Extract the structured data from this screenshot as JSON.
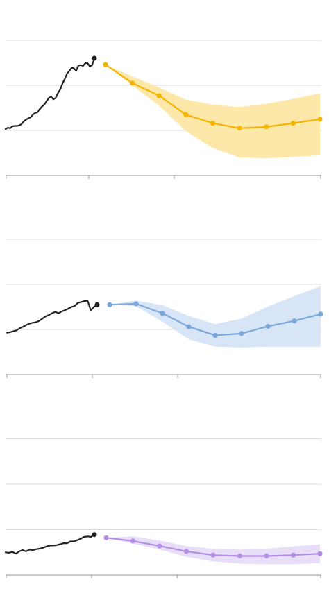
{
  "chart_data": [
    {
      "type": "line",
      "title": "",
      "xlabel": "",
      "ylabel": "",
      "ylim": [
        0,
        3
      ],
      "grid": true,
      "history": {
        "color": "#222222",
        "values": [
          1.03,
          1.06,
          1.05,
          1.09,
          1.1,
          1.1,
          1.11,
          1.14,
          1.2,
          1.24,
          1.27,
          1.29,
          1.35,
          1.39,
          1.4,
          1.47,
          1.53,
          1.57,
          1.65,
          1.72,
          1.75,
          1.69,
          1.72,
          1.83,
          1.91,
          2.04,
          2.14,
          2.26,
          2.32,
          2.39,
          2.38,
          2.32,
          2.44,
          2.45,
          2.43,
          2.49,
          2.49,
          2.42,
          2.45,
          2.6
        ]
      },
      "forecast": {
        "color": "#f5b400",
        "band_color": "#fde7a4",
        "values": [
          2.46,
          2.05,
          1.77,
          1.35,
          1.16,
          1.05,
          1.08,
          1.16,
          1.25
        ],
        "lower": [
          2.46,
          2.0,
          1.55,
          0.98,
          0.61,
          0.4,
          0.38,
          0.41,
          0.45
        ],
        "upper": [
          2.46,
          2.2,
          1.95,
          1.68,
          1.57,
          1.52,
          1.59,
          1.7,
          1.82
        ]
      }
    },
    {
      "type": "line",
      "title": "",
      "xlabel": "",
      "ylabel": "",
      "ylim": [
        0,
        3
      ],
      "grid": true,
      "history": {
        "color": "#222222",
        "values": [
          0.93,
          0.94,
          0.96,
          0.98,
          1.03,
          1.06,
          1.1,
          1.13,
          1.15,
          1.16,
          1.19,
          1.24,
          1.29,
          1.32,
          1.36,
          1.39,
          1.36,
          1.4,
          1.43,
          1.46,
          1.5,
          1.52,
          1.59,
          1.61,
          1.63,
          1.64,
          1.43,
          1.5,
          1.55
        ]
      },
      "forecast": {
        "color": "#7aa7dc",
        "band_color": "#d5e4f5",
        "values": [
          1.55,
          1.57,
          1.36,
          1.06,
          0.87,
          0.91,
          1.07,
          1.19,
          1.34
        ],
        "lower": [
          1.55,
          1.52,
          1.17,
          0.78,
          0.62,
          0.6,
          0.62,
          0.62,
          0.62
        ],
        "upper": [
          1.55,
          1.64,
          1.54,
          1.3,
          1.12,
          1.24,
          1.51,
          1.74,
          1.96
        ]
      }
    },
    {
      "type": "line",
      "title": "",
      "xlabel": "",
      "ylabel": "",
      "ylim": [
        0,
        3
      ],
      "grid": true,
      "history": {
        "color": "#222222",
        "values": [
          0.5,
          0.49,
          0.51,
          0.47,
          0.52,
          0.55,
          0.52,
          0.56,
          0.55,
          0.57,
          0.58,
          0.6,
          0.63,
          0.65,
          0.65,
          0.66,
          0.68,
          0.7,
          0.7,
          0.74,
          0.74,
          0.77,
          0.8,
          0.84,
          0.85,
          0.84,
          0.89
        ]
      },
      "forecast": {
        "color": "#b48ee6",
        "band_color": "#e8dcf8",
        "values": [
          0.82,
          0.75,
          0.64,
          0.52,
          0.44,
          0.42,
          0.42,
          0.44,
          0.47
        ],
        "lower": [
          0.82,
          0.69,
          0.56,
          0.4,
          0.3,
          0.25,
          0.24,
          0.24,
          0.26
        ],
        "upper": [
          0.82,
          0.85,
          0.76,
          0.64,
          0.58,
          0.56,
          0.58,
          0.63,
          0.68
        ]
      }
    }
  ]
}
